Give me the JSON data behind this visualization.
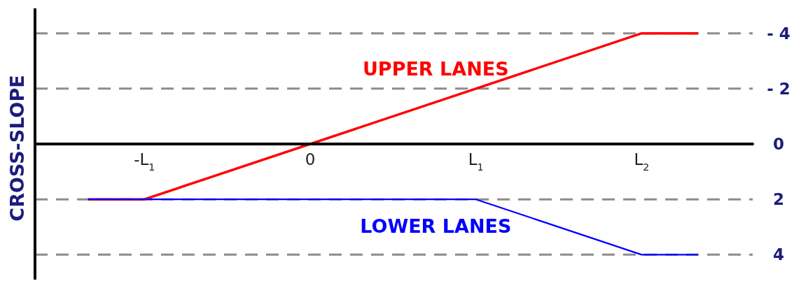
{
  "chart_data": {
    "type": "line",
    "ylabel": "CROSS-SLOPE",
    "xlim": [
      -1.66,
      2.67
    ],
    "xticks": [
      {
        "value": -1,
        "label": "-L$_{1}$"
      },
      0,
      {
        "value": 1,
        "label": "L$_{1}$"
      },
      {
        "value": 2,
        "label": "L$_{2}$"
      }
    ],
    "ylim": [
      4.9,
      -4.9
    ],
    "yticks": [
      {
        "value": -4,
        "label": "- 4"
      },
      {
        "value": -2,
        "label": "- 2"
      },
      0,
      2,
      4
    ],
    "grid": "y",
    "series": [
      {
        "name": "UPPER LANES",
        "color": "#ff0000",
        "x": [
          -1.34,
          -1,
          2,
          2.34
        ],
        "values": [
          2,
          2,
          -4,
          -4
        ]
      },
      {
        "name": "LOWER LANES",
        "color": "#0000ff",
        "x": [
          -1.34,
          1,
          2,
          2.34
        ],
        "values": [
          2,
          2,
          4,
          4
        ]
      }
    ]
  }
}
